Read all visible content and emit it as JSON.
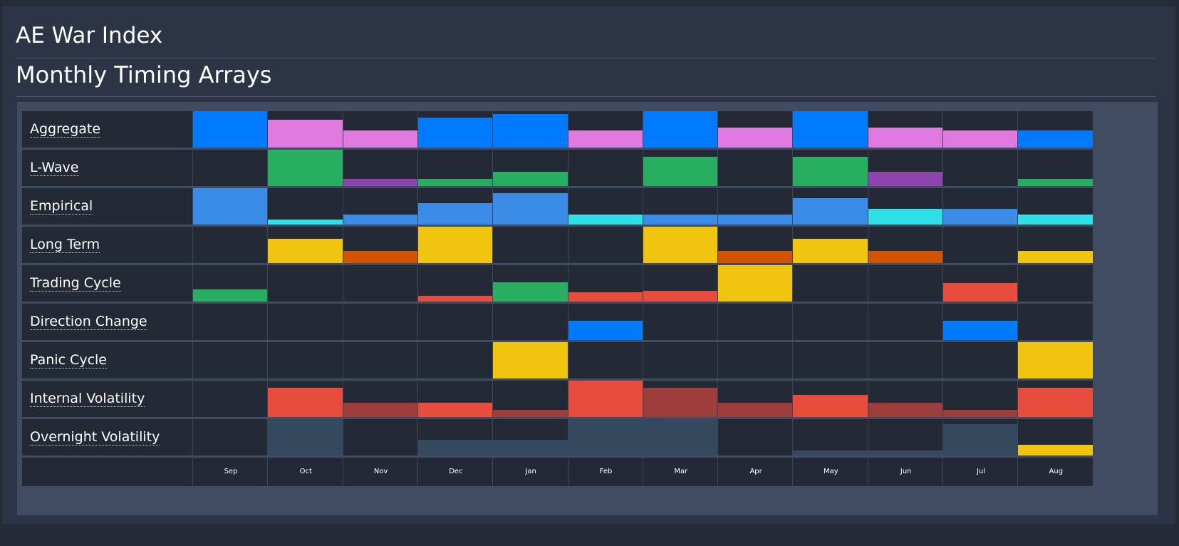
{
  "header": {
    "app_title": "AE War Index",
    "section_title": "Monthly Timing Arrays"
  },
  "colors": {
    "blue": "#007bff",
    "pink": "#e07ae0",
    "green": "#27ae60",
    "purple": "#8e44ad",
    "light_blue": "#3a8ce6",
    "cyan": "#2ee0e6",
    "yellow": "#f1c40f",
    "orange": "#d35400",
    "red": "#e74c3c",
    "dark_red": "#9e3e3c",
    "slate": "#34495e"
  },
  "chart_data": {
    "type": "heatmap",
    "months": [
      "Sep",
      "Oct",
      "Nov",
      "Dec",
      "Jan",
      "Feb",
      "Mar",
      "Apr",
      "May",
      "Jun",
      "Jul",
      "Aug"
    ],
    "series": [
      {
        "name": "Aggregate",
        "values": [
          1.0,
          0.76,
          0.48,
          0.83,
          0.93,
          0.48,
          1.0,
          0.55,
          1.0,
          0.55,
          0.48,
          0.48
        ],
        "colors": [
          "blue",
          "pink",
          "pink",
          "blue",
          "blue",
          "pink",
          "blue",
          "pink",
          "blue",
          "pink",
          "pink",
          "blue"
        ]
      },
      {
        "name": "L-Wave",
        "values": [
          0,
          1.0,
          0.2,
          0.2,
          0.4,
          0,
          0.8,
          0,
          0.8,
          0.4,
          0,
          0.2
        ],
        "colors": [
          "green",
          "green",
          "purple",
          "green",
          "green",
          "green",
          "green",
          "green",
          "green",
          "purple",
          "green",
          "green"
        ]
      },
      {
        "name": "Empirical",
        "values": [
          1.0,
          0.14,
          0.28,
          0.59,
          0.86,
          0.28,
          0.28,
          0.28,
          0.72,
          0.43,
          0.43,
          0.28
        ],
        "colors": [
          "light_blue",
          "cyan",
          "light_blue",
          "light_blue",
          "light_blue",
          "cyan",
          "light_blue",
          "light_blue",
          "light_blue",
          "cyan",
          "light_blue",
          "cyan"
        ]
      },
      {
        "name": "Long Term",
        "values": [
          0,
          0.67,
          0.33,
          1.0,
          0,
          0,
          1.0,
          0.33,
          0.67,
          0.33,
          0,
          0.33
        ],
        "colors": [
          "yellow",
          "yellow",
          "orange",
          "yellow",
          "yellow",
          "yellow",
          "yellow",
          "orange",
          "yellow",
          "orange",
          "yellow",
          "yellow"
        ]
      },
      {
        "name": "Trading Cycle",
        "values": [
          0.33,
          0,
          0,
          0.15,
          0.53,
          0.25,
          0.3,
          1.0,
          0,
          0,
          0.5,
          0
        ],
        "colors": [
          "green",
          "green",
          "green",
          "red",
          "green",
          "red",
          "red",
          "yellow",
          "red",
          "red",
          "red",
          "red"
        ]
      },
      {
        "name": "Direction Change",
        "values": [
          0,
          0,
          0,
          0,
          0,
          0.52,
          0,
          0,
          0,
          0,
          0.52,
          0
        ],
        "colors": [
          "blue",
          "blue",
          "blue",
          "blue",
          "blue",
          "blue",
          "blue",
          "blue",
          "blue",
          "blue",
          "blue",
          "blue"
        ]
      },
      {
        "name": "Panic Cycle",
        "values": [
          0,
          0,
          0,
          0,
          1.0,
          0,
          0,
          0,
          0,
          0,
          0,
          1.0
        ],
        "colors": [
          "yellow",
          "yellow",
          "yellow",
          "yellow",
          "yellow",
          "yellow",
          "yellow",
          "yellow",
          "yellow",
          "yellow",
          "yellow",
          "yellow"
        ]
      },
      {
        "name": "Internal Volatility",
        "values": [
          0,
          0.8,
          0.4,
          0.4,
          0.2,
          1.0,
          0.8,
          0.4,
          0.6,
          0.4,
          0.2,
          0.8
        ],
        "colors": [
          "red",
          "red",
          "dark_red",
          "red",
          "dark_red",
          "red",
          "dark_red",
          "dark_red",
          "red",
          "dark_red",
          "dark_red",
          "red"
        ]
      },
      {
        "name": "Overnight Volatility",
        "values": [
          0,
          1.0,
          0,
          0.43,
          0.43,
          1.0,
          1.0,
          0,
          0.14,
          0.14,
          0.86,
          0.29
        ],
        "colors": [
          "slate",
          "slate",
          "slate",
          "slate",
          "slate",
          "slate",
          "slate",
          "slate",
          "slate",
          "slate",
          "slate",
          "yellow"
        ]
      }
    ]
  }
}
